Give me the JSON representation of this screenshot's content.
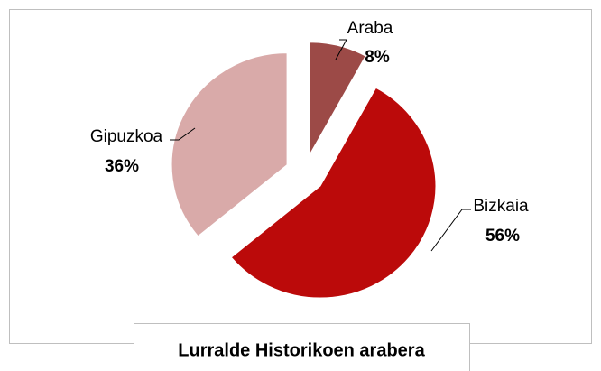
{
  "chart_data": {
    "type": "pie",
    "title": "Lurralde Historikoen arabera",
    "categories": [
      "Araba",
      "Bizkaia",
      "Gipuzkoa"
    ],
    "values": [
      8,
      56,
      36
    ],
    "value_labels": [
      "8%",
      "56%",
      "36%"
    ],
    "colors": [
      "#9c4a47",
      "#bb0a0a",
      "#d9aaa9"
    ]
  }
}
